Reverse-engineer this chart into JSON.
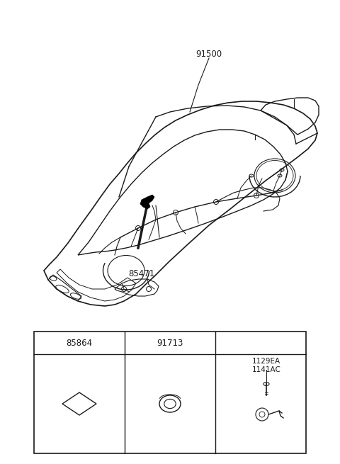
{
  "bg_color": "#ffffff",
  "lc": "#1a1a1a",
  "label_91500": "91500",
  "label_85471": "85471",
  "label_85864": "85864",
  "label_91713": "91713",
  "label_part3": "1129EA\n1141AC",
  "lfs": 8.5,
  "sfs": 7.5
}
